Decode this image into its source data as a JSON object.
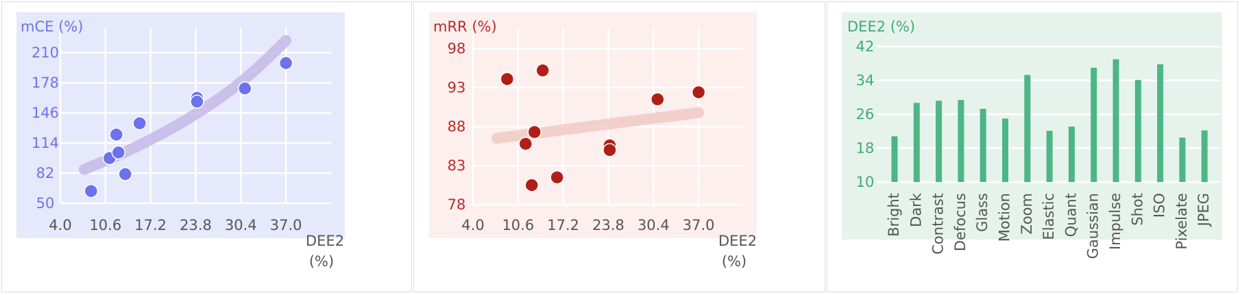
{
  "chart_data": [
    {
      "type": "scatter",
      "ylabel": "mCE (%)",
      "xlabel": "DEE2",
      "xlabel_unit": "(%)",
      "xticks": [
        "4.0",
        "10.6",
        "17.2",
        "23.8",
        "30.4",
        "37.0"
      ],
      "yticks": [
        "210",
        "178",
        "146",
        "114",
        "82",
        "50"
      ],
      "xlim": [
        4.0,
        43.6
      ],
      "ylim": [
        50,
        210
      ],
      "grid": true,
      "background": "#e6e8fb",
      "text_color": "#6e74e6",
      "point_color": "#6b72ec",
      "trend_color": "#c4b8e6",
      "points": [
        {
          "x": 8.5,
          "y": 63
        },
        {
          "x": 11.2,
          "y": 98
        },
        {
          "x": 12.2,
          "y": 123
        },
        {
          "x": 12.5,
          "y": 104
        },
        {
          "x": 13.5,
          "y": 81
        },
        {
          "x": 15.6,
          "y": 135
        },
        {
          "x": 24.0,
          "y": 162
        },
        {
          "x": 24.0,
          "y": 158
        },
        {
          "x": 31.0,
          "y": 172
        },
        {
          "x": 37.0,
          "y": 199
        }
      ],
      "trend": [
        {
          "x": 7.5,
          "y": 86
        },
        {
          "x": 13.5,
          "y": 104
        },
        {
          "x": 19.5,
          "y": 126
        },
        {
          "x": 25.5,
          "y": 152
        },
        {
          "x": 31.5,
          "y": 184
        },
        {
          "x": 37.0,
          "y": 223
        }
      ]
    },
    {
      "type": "scatter",
      "ylabel": "mRR (%)",
      "xlabel": "DEE2",
      "xlabel_unit": "(%)",
      "xticks": [
        "4.0",
        "10.6",
        "17.2",
        "23.8",
        "30.4",
        "37.0"
      ],
      "yticks": [
        "98",
        "93",
        "88",
        "83",
        "78"
      ],
      "xlim": [
        4.0,
        43.6
      ],
      "ylim": [
        78,
        98
      ],
      "grid": true,
      "background": "#fcefee",
      "text_color": "#b82c28",
      "point_color": "#b01f17",
      "trend_color": "#f1c9c6",
      "points": [
        {
          "x": 9.0,
          "y": 94.1
        },
        {
          "x": 11.7,
          "y": 85.8
        },
        {
          "x": 12.6,
          "y": 80.5
        },
        {
          "x": 13.0,
          "y": 87.3
        },
        {
          "x": 14.2,
          "y": 95.2
        },
        {
          "x": 16.3,
          "y": 81.5
        },
        {
          "x": 24.0,
          "y": 85.6
        },
        {
          "x": 24.0,
          "y": 85.0
        },
        {
          "x": 31.0,
          "y": 91.5
        },
        {
          "x": 37.0,
          "y": 92.4
        }
      ],
      "trend": [
        {
          "x": 7.5,
          "y": 86.5
        },
        {
          "x": 37.0,
          "y": 89.8
        }
      ]
    },
    {
      "type": "bar",
      "ylabel": "DEE2 (%)",
      "categories": [
        "Bright",
        "Dark",
        "Contrast",
        "Defocus",
        "Glass",
        "Motion",
        "Zoom",
        "Elastic",
        "Quant",
        "Gaussian",
        "Impulse",
        "Shot",
        "ISO",
        "Pixelate",
        "JPEG"
      ],
      "values": [
        20.8,
        28.7,
        29.2,
        29.4,
        27.3,
        25.0,
        35.3,
        22.1,
        23.1,
        37.0,
        39.0,
        34.1,
        37.8,
        20.5,
        22.2
      ],
      "yticks": [
        "42",
        "34",
        "26",
        "18",
        "10"
      ],
      "ylim": [
        10,
        42
      ],
      "grid": true,
      "background": "#e6f3ec",
      "text_color": "#3faa78",
      "bar_color": "#4cb685"
    }
  ]
}
